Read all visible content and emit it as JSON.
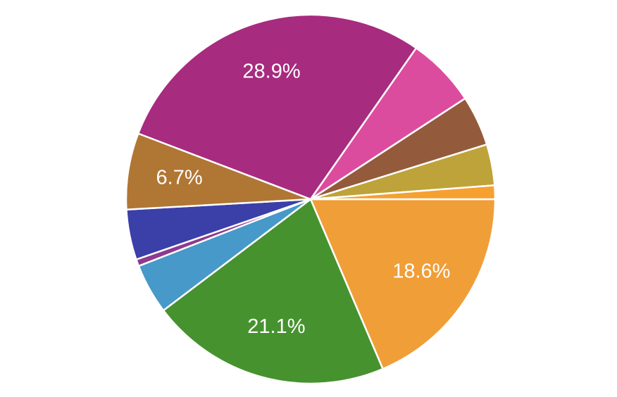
{
  "chart_data": {
    "type": "pie",
    "values": [
      18.6,
      21.1,
      4.4,
      0.6,
      4.4,
      6.7,
      28.9,
      6.1,
      4.4,
      3.6,
      1.2
    ],
    "value_labels": [
      "18.6%",
      "21.1%",
      null,
      null,
      null,
      "6.7%",
      "28.9%",
      null,
      null,
      null,
      null
    ],
    "colors": [
      "#f09e38",
      "#46922f",
      "#4699c8",
      "#8e3a8e",
      "#3b3fa8",
      "#b07634",
      "#a72b7e",
      "#dc4c9e",
      "#935b3c",
      "#bea33a",
      "#f5a030"
    ]
  }
}
